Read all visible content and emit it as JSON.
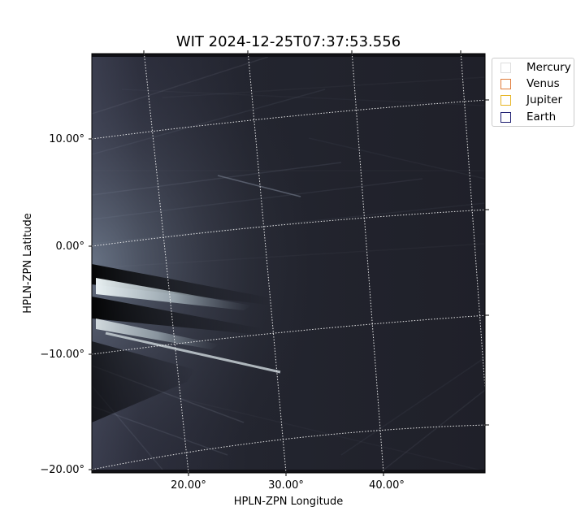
{
  "chart_data": {
    "type": "heatmap",
    "title": "WIT 2024-12-25T07:37:53.556",
    "xlabel": "HPLN-ZPN Longitude",
    "ylabel": "HPLN-ZPN Latitude",
    "x_ticks": [
      "20.00°",
      "30.00°",
      "40.00°"
    ],
    "y_ticks": [
      "10.00°",
      "0.00°",
      "−10.00°",
      "−20.00°"
    ],
    "colormap": "bone",
    "grid": true,
    "legend_position": "outside-top-right",
    "legend": [
      {
        "name": "Mercury",
        "color": "#dddddd"
      },
      {
        "name": "Venus",
        "color": "#e07b39"
      },
      {
        "name": "Jupiter",
        "color": "#e6b422"
      },
      {
        "name": "Earth",
        "color": "#1a1a6e"
      }
    ]
  }
}
